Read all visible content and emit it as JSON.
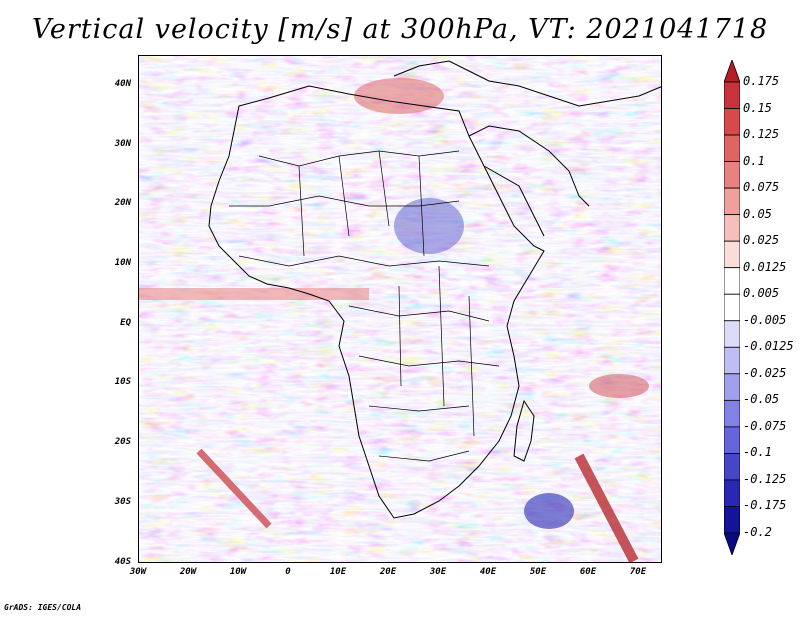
{
  "title": "Vertical velocity [m/s] at 300hPa, VT: 2021041718",
  "credit": "GrADS: IGES/COLA",
  "map": {
    "lat_labels": [
      "40N",
      "30N",
      "20N",
      "10N",
      "EQ",
      "10S",
      "20S",
      "30S",
      "40S"
    ],
    "lon_labels": [
      "30W",
      "20W",
      "10W",
      "0",
      "10E",
      "20E",
      "30E",
      "40E",
      "50E",
      "60E",
      "70E"
    ],
    "lat_range": [
      -40,
      44
    ],
    "lon_range": [
      -30,
      75
    ]
  },
  "colorbar": {
    "labels": [
      "0.175",
      "0.15",
      "0.125",
      "0.1",
      "0.075",
      "0.05",
      "0.025",
      "0.0125",
      "0.005",
      "-0.005",
      "-0.0125",
      "-0.025",
      "-0.05",
      "-0.075",
      "-0.1",
      "-0.125",
      "-0.175",
      "-0.2"
    ],
    "colors": [
      "#b41e24",
      "#c8323a",
      "#d84a4a",
      "#e06462",
      "#e88280",
      "#f0a09c",
      "#f6bfbb",
      "#fadcd8",
      "#ffffff",
      "#ffffff",
      "#dcdcf8",
      "#bebef2",
      "#a0a0ec",
      "#8282e6",
      "#6464dc",
      "#4646c8",
      "#2828b4",
      "#14149a",
      "#0a0a82"
    ]
  }
}
